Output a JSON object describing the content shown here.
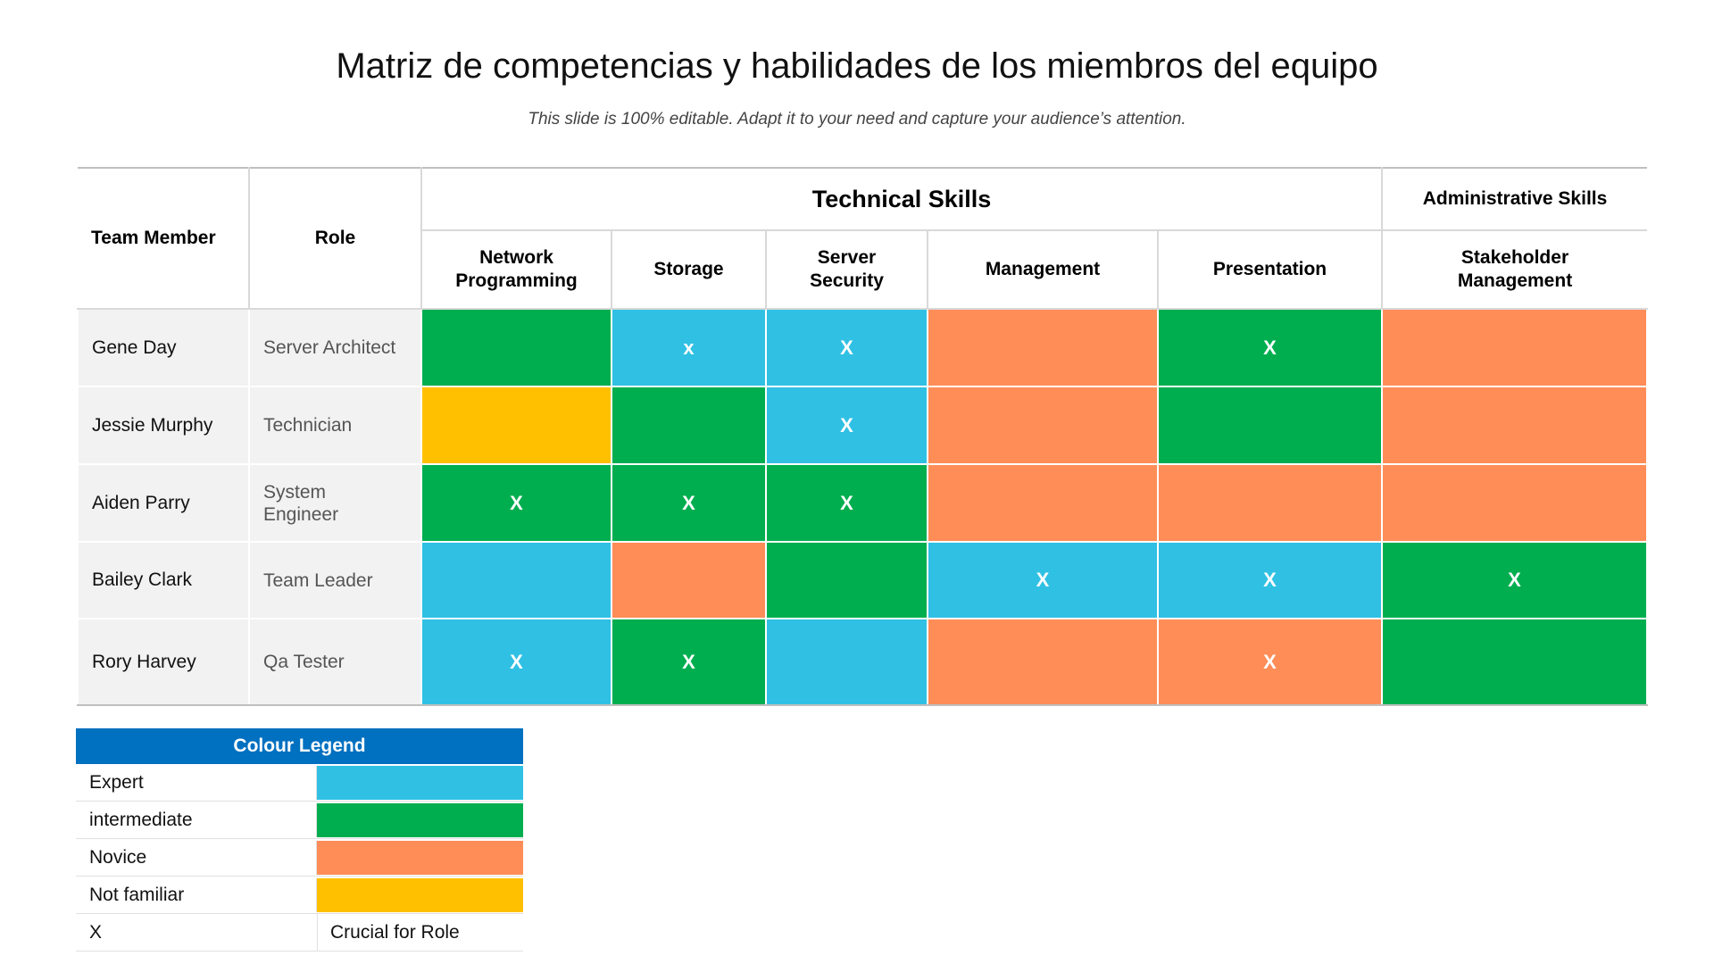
{
  "title": "Matriz de competencias y habilidades de los miembros del equipo",
  "subtitle": "This slide is 100% editable. Adapt it to your need and capture your audience’s attention.",
  "colors": {
    "expert": "#30C0E4",
    "intermediate": "#00AE4F",
    "novice": "#FF8D58",
    "not_familiar": "#FFC000",
    "legend_header": "#0070C0"
  },
  "table": {
    "col_member": "Team Member",
    "col_role": "Role",
    "group_technical": "Technical Skills",
    "group_admin": "Administrative Skills",
    "skills": [
      "Network\nProgramming",
      "Storage",
      "Server\nSecurity",
      "Management",
      "Presentation",
      "Stakeholder\nManagement"
    ],
    "rows": [
      {
        "name": "Gene Day",
        "role": "Server Architect",
        "cells": [
          {
            "level": "intermediate",
            "mark": ""
          },
          {
            "level": "expert",
            "mark": "x"
          },
          {
            "level": "expert",
            "mark": "X"
          },
          {
            "level": "novice",
            "mark": ""
          },
          {
            "level": "intermediate",
            "mark": "X"
          },
          {
            "level": "novice",
            "mark": ""
          }
        ]
      },
      {
        "name": "Jessie Murphy",
        "role": "Technician",
        "cells": [
          {
            "level": "not_familiar",
            "mark": ""
          },
          {
            "level": "intermediate",
            "mark": ""
          },
          {
            "level": "expert",
            "mark": "X"
          },
          {
            "level": "novice",
            "mark": ""
          },
          {
            "level": "intermediate",
            "mark": ""
          },
          {
            "level": "novice",
            "mark": ""
          }
        ]
      },
      {
        "name": "Aiden Parry",
        "role": "System Engineer",
        "cells": [
          {
            "level": "intermediate",
            "mark": "X"
          },
          {
            "level": "intermediate",
            "mark": "X"
          },
          {
            "level": "intermediate",
            "mark": "X"
          },
          {
            "level": "novice",
            "mark": ""
          },
          {
            "level": "novice",
            "mark": ""
          },
          {
            "level": "novice",
            "mark": ""
          }
        ]
      },
      {
        "name": "Bailey Clark",
        "role": "Team Leader",
        "cells": [
          {
            "level": "expert",
            "mark": ""
          },
          {
            "level": "novice",
            "mark": ""
          },
          {
            "level": "intermediate",
            "mark": ""
          },
          {
            "level": "expert",
            "mark": "X"
          },
          {
            "level": "expert",
            "mark": "X"
          },
          {
            "level": "intermediate",
            "mark": "X"
          }
        ]
      },
      {
        "name": "Rory Harvey",
        "role": "Qa Tester",
        "cells": [
          {
            "level": "expert",
            "mark": "X"
          },
          {
            "level": "intermediate",
            "mark": "X"
          },
          {
            "level": "expert",
            "mark": ""
          },
          {
            "level": "novice",
            "mark": ""
          },
          {
            "level": "novice",
            "mark": "X"
          },
          {
            "level": "intermediate",
            "mark": ""
          }
        ]
      }
    ]
  },
  "legend": {
    "title": "Colour Legend",
    "items": [
      {
        "label": "Expert",
        "level": "expert"
      },
      {
        "label": "intermediate",
        "level": "intermediate"
      },
      {
        "label": "Novice",
        "level": "novice"
      },
      {
        "label": "Not familiar",
        "level": "not_familiar"
      }
    ],
    "mark_symbol": "X",
    "mark_meaning": "Crucial for Role"
  }
}
